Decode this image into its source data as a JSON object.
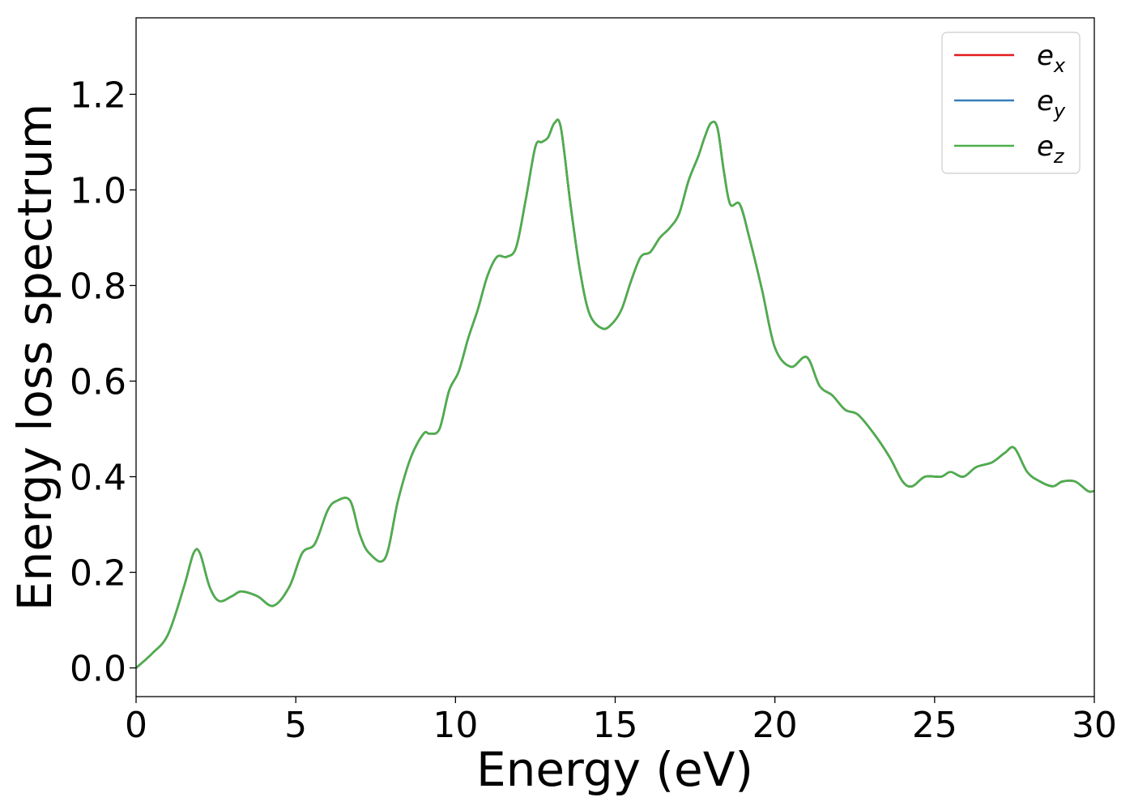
{
  "chart_data": {
    "type": "line",
    "xlabel": "Energy (eV)",
    "ylabel": "Energy loss spectrum",
    "xlim": [
      0,
      30
    ],
    "ylim": [
      -0.06,
      1.36
    ],
    "xticks": [
      0,
      5,
      10,
      15,
      20,
      25,
      30
    ],
    "yticks": [
      0.0,
      0.2,
      0.4,
      0.6,
      0.8,
      1.0,
      1.2
    ],
    "xtick_labels": [
      "0",
      "5",
      "10",
      "15",
      "20",
      "25",
      "30"
    ],
    "ytick_labels": [
      "0.0",
      "0.2",
      "0.4",
      "0.6",
      "0.8",
      "1.0",
      "1.2"
    ],
    "grid": false,
    "legend_position": "top-right",
    "series": [
      {
        "name": "e",
        "subscript": "x",
        "color": "#e41a1c"
      },
      {
        "name": "e",
        "subscript": "y",
        "color": "#377eb8"
      },
      {
        "name": "e",
        "subscript": "z",
        "color": "#4daf4a"
      }
    ],
    "x": [
      0,
      0.5,
      1.0,
      1.5,
      1.8,
      2.0,
      2.3,
      2.6,
      3.0,
      3.3,
      3.8,
      4.3,
      4.8,
      5.2,
      5.6,
      6.0,
      6.3,
      6.7,
      7.0,
      7.3,
      7.8,
      8.2,
      8.6,
      9.0,
      9.2,
      9.5,
      9.8,
      10.1,
      10.4,
      10.7,
      11.0,
      11.3,
      11.6,
      11.9,
      12.2,
      12.5,
      12.7,
      12.9,
      13.1,
      13.3,
      13.6,
      13.9,
      14.2,
      14.6,
      14.9,
      15.2,
      15.5,
      15.8,
      16.1,
      16.4,
      16.7,
      17.0,
      17.3,
      17.6,
      17.8,
      18.0,
      18.2,
      18.4,
      18.6,
      18.9,
      19.2,
      19.6,
      20.0,
      20.5,
      21.0,
      21.4,
      21.8,
      22.2,
      22.6,
      23.1,
      23.6,
      24.0,
      24.3,
      24.7,
      25.2,
      25.5,
      25.9,
      26.3,
      26.8,
      27.2,
      27.5,
      27.9,
      28.3,
      28.7,
      29.0,
      29.4,
      29.8,
      30.0
    ],
    "values": [
      0.0,
      0.03,
      0.07,
      0.17,
      0.24,
      0.24,
      0.17,
      0.14,
      0.15,
      0.16,
      0.15,
      0.13,
      0.17,
      0.24,
      0.26,
      0.33,
      0.35,
      0.35,
      0.28,
      0.24,
      0.23,
      0.35,
      0.44,
      0.49,
      0.49,
      0.5,
      0.58,
      0.62,
      0.69,
      0.75,
      0.82,
      0.86,
      0.86,
      0.88,
      0.98,
      1.09,
      1.1,
      1.11,
      1.14,
      1.13,
      0.97,
      0.83,
      0.74,
      0.71,
      0.72,
      0.75,
      0.81,
      0.86,
      0.87,
      0.9,
      0.92,
      0.95,
      1.02,
      1.07,
      1.11,
      1.14,
      1.13,
      1.04,
      0.97,
      0.97,
      0.9,
      0.79,
      0.67,
      0.63,
      0.65,
      0.59,
      0.57,
      0.54,
      0.53,
      0.49,
      0.44,
      0.39,
      0.38,
      0.4,
      0.4,
      0.41,
      0.4,
      0.42,
      0.43,
      0.45,
      0.46,
      0.41,
      0.39,
      0.38,
      0.39,
      0.39,
      0.37,
      0.37
    ]
  }
}
